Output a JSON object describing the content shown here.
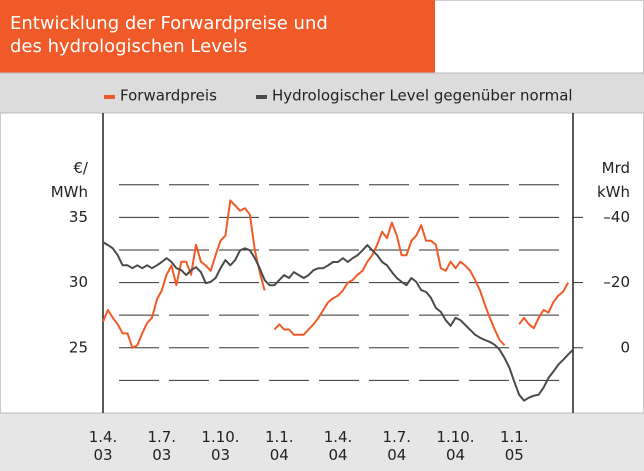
{
  "chart_data": {
    "type": "line",
    "title": "Entwicklung der Forwardpreise und\ndes hydrologischen Levels",
    "y_label": "€/\nMWh",
    "y2_label": "Mrd\nkWh",
    "categories": [
      "1.4.\n03",
      null,
      null,
      null,
      null,
      null,
      null,
      null,
      null,
      null,
      null,
      null,
      "1.7.\n03",
      null,
      null,
      null,
      null,
      null,
      null,
      null,
      null,
      null,
      null,
      null,
      "1.10.\n03",
      null,
      null,
      null,
      null,
      null,
      null,
      null,
      null,
      null,
      null,
      null,
      "1.1.\n04",
      null,
      null,
      null,
      null,
      null,
      null,
      null,
      null,
      null,
      null,
      null,
      "1.4.\n04",
      null,
      null,
      null,
      null,
      null,
      null,
      null,
      null,
      null,
      null,
      null,
      "1.7.\n04",
      null,
      null,
      null,
      null,
      null,
      null,
      null,
      null,
      null,
      null,
      null,
      "1.10.\n04",
      null,
      null,
      null,
      null,
      null,
      null,
      null,
      null,
      null,
      null,
      null,
      "1.1.\n05",
      null,
      null,
      null,
      null,
      null,
      null,
      null,
      null,
      null,
      null,
      null,
      null
    ],
    "ylim": [
      20,
      43
    ],
    "yticks": [
      25,
      30,
      35
    ],
    "minor_yticks": [
      22.5,
      27.5,
      32.5,
      37.5
    ],
    "y2lim": [
      20,
      -72
    ],
    "y2ticks": [
      {
        "value": -40,
        "label": "–40"
      },
      {
        "value": -20,
        "label": "–20"
      },
      0
    ],
    "grid": true,
    "series": [
      {
        "name": "Forwardpreis",
        "color": "#f05a28",
        "axis": "y",
        "values": [
          27.0,
          27.9,
          27.3,
          26.8,
          26.1,
          26.1,
          25.0,
          25.2,
          26.1,
          26.9,
          27.3,
          28.7,
          29.4,
          30.6,
          31.3,
          29.8,
          31.6,
          31.6,
          30.6,
          32.9,
          31.6,
          31.3,
          30.9,
          32.1,
          33.2,
          33.6,
          36.3,
          35.9,
          35.5,
          35.7,
          35.2,
          32.5,
          30.8,
          29.4,
          null,
          26.4,
          26.8,
          26.4,
          26.4,
          26.0,
          26.0,
          26.0,
          26.4,
          26.8,
          27.3,
          27.9,
          28.5,
          28.8,
          29.0,
          29.4,
          30.0,
          30.2,
          30.6,
          30.9,
          31.6,
          32.1,
          32.9,
          33.9,
          33.4,
          34.6,
          33.6,
          32.1,
          32.1,
          33.2,
          33.6,
          34.4,
          33.2,
          33.2,
          32.9,
          31.1,
          30.9,
          31.6,
          31.1,
          31.6,
          31.3,
          30.9,
          30.2,
          29.4,
          28.3,
          27.3,
          26.4,
          25.6,
          25.2,
          null,
          null,
          26.8,
          27.3,
          26.8,
          26.5,
          27.3,
          27.9,
          27.7,
          28.5,
          29.0,
          29.3,
          30.0,
          null
        ]
      },
      {
        "name": "Hydrologischer Level gegenüber normal",
        "color": "#4a4a4a",
        "axis": "y2",
        "values": [
          -32.4,
          -31.5,
          -30.5,
          -28.4,
          -25.3,
          -25.3,
          -24.4,
          -25.3,
          -24.4,
          -25.3,
          -24.4,
          -25.3,
          -26.3,
          -27.5,
          -26.3,
          -24.4,
          -23.8,
          -22.3,
          -23.8,
          -24.7,
          -23.2,
          -19.8,
          -20.2,
          -21.4,
          -24.4,
          -26.9,
          -25.3,
          -26.9,
          -29.9,
          -30.5,
          -29.9,
          -27.5,
          -24.4,
          -20.8,
          -19.2,
          -19.2,
          -20.8,
          -22.3,
          -21.4,
          -23.2,
          -22.3,
          -21.4,
          -22.3,
          -23.8,
          -24.4,
          -24.4,
          -25.3,
          -26.3,
          -26.3,
          -27.5,
          -26.3,
          -27.5,
          -28.4,
          -29.9,
          -31.5,
          -29.9,
          -28.4,
          -26.3,
          -25.3,
          -23.2,
          -21.4,
          -20.2,
          -19.2,
          -21.4,
          -20.2,
          -17.7,
          -17.1,
          -15.3,
          -12.2,
          -11.0,
          -8.5,
          -6.7,
          -9.2,
          -8.5,
          -7.0,
          -5.5,
          -4.0,
          -3.1,
          -2.4,
          -1.8,
          -0.9,
          0.6,
          3.1,
          6.1,
          10.4,
          14.4,
          16.2,
          15.3,
          14.7,
          14.4,
          12.2,
          9.2,
          7.3,
          5.2,
          3.7,
          2.1,
          0.6
        ]
      }
    ]
  }
}
